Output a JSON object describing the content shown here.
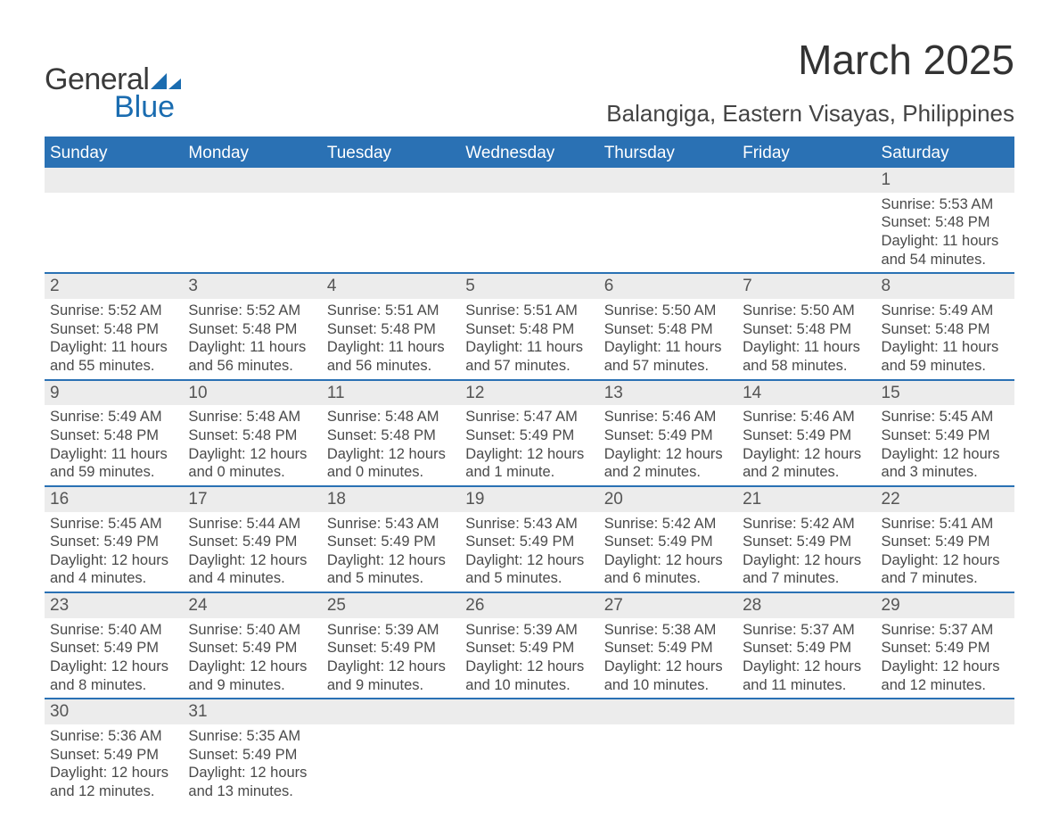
{
  "brand": {
    "word1": "General",
    "word2": "Blue",
    "accent_color": "#1a6cb0"
  },
  "header": {
    "month_title": "March 2025",
    "location": "Balangiga, Eastern Visayas, Philippines"
  },
  "colors": {
    "header_bg": "#2a71b4",
    "header_text": "#ffffff",
    "row_divider": "#2a71b4",
    "daynum_bg": "#ececec",
    "body_text": "#4a4a4a"
  },
  "calendar": {
    "day_headers": [
      "Sunday",
      "Monday",
      "Tuesday",
      "Wednesday",
      "Thursday",
      "Friday",
      "Saturday"
    ],
    "weeks": [
      [
        null,
        null,
        null,
        null,
        null,
        null,
        {
          "n": "1",
          "sunrise": "5:53 AM",
          "sunset": "5:48 PM",
          "daylight": "11 hours and 54 minutes."
        }
      ],
      [
        {
          "n": "2",
          "sunrise": "5:52 AM",
          "sunset": "5:48 PM",
          "daylight": "11 hours and 55 minutes."
        },
        {
          "n": "3",
          "sunrise": "5:52 AM",
          "sunset": "5:48 PM",
          "daylight": "11 hours and 56 minutes."
        },
        {
          "n": "4",
          "sunrise": "5:51 AM",
          "sunset": "5:48 PM",
          "daylight": "11 hours and 56 minutes."
        },
        {
          "n": "5",
          "sunrise": "5:51 AM",
          "sunset": "5:48 PM",
          "daylight": "11 hours and 57 minutes."
        },
        {
          "n": "6",
          "sunrise": "5:50 AM",
          "sunset": "5:48 PM",
          "daylight": "11 hours and 57 minutes."
        },
        {
          "n": "7",
          "sunrise": "5:50 AM",
          "sunset": "5:48 PM",
          "daylight": "11 hours and 58 minutes."
        },
        {
          "n": "8",
          "sunrise": "5:49 AM",
          "sunset": "5:48 PM",
          "daylight": "11 hours and 59 minutes."
        }
      ],
      [
        {
          "n": "9",
          "sunrise": "5:49 AM",
          "sunset": "5:48 PM",
          "daylight": "11 hours and 59 minutes."
        },
        {
          "n": "10",
          "sunrise": "5:48 AM",
          "sunset": "5:48 PM",
          "daylight": "12 hours and 0 minutes."
        },
        {
          "n": "11",
          "sunrise": "5:48 AM",
          "sunset": "5:48 PM",
          "daylight": "12 hours and 0 minutes."
        },
        {
          "n": "12",
          "sunrise": "5:47 AM",
          "sunset": "5:49 PM",
          "daylight": "12 hours and 1 minute."
        },
        {
          "n": "13",
          "sunrise": "5:46 AM",
          "sunset": "5:49 PM",
          "daylight": "12 hours and 2 minutes."
        },
        {
          "n": "14",
          "sunrise": "5:46 AM",
          "sunset": "5:49 PM",
          "daylight": "12 hours and 2 minutes."
        },
        {
          "n": "15",
          "sunrise": "5:45 AM",
          "sunset": "5:49 PM",
          "daylight": "12 hours and 3 minutes."
        }
      ],
      [
        {
          "n": "16",
          "sunrise": "5:45 AM",
          "sunset": "5:49 PM",
          "daylight": "12 hours and 4 minutes."
        },
        {
          "n": "17",
          "sunrise": "5:44 AM",
          "sunset": "5:49 PM",
          "daylight": "12 hours and 4 minutes."
        },
        {
          "n": "18",
          "sunrise": "5:43 AM",
          "sunset": "5:49 PM",
          "daylight": "12 hours and 5 minutes."
        },
        {
          "n": "19",
          "sunrise": "5:43 AM",
          "sunset": "5:49 PM",
          "daylight": "12 hours and 5 minutes."
        },
        {
          "n": "20",
          "sunrise": "5:42 AM",
          "sunset": "5:49 PM",
          "daylight": "12 hours and 6 minutes."
        },
        {
          "n": "21",
          "sunrise": "5:42 AM",
          "sunset": "5:49 PM",
          "daylight": "12 hours and 7 minutes."
        },
        {
          "n": "22",
          "sunrise": "5:41 AM",
          "sunset": "5:49 PM",
          "daylight": "12 hours and 7 minutes."
        }
      ],
      [
        {
          "n": "23",
          "sunrise": "5:40 AM",
          "sunset": "5:49 PM",
          "daylight": "12 hours and 8 minutes."
        },
        {
          "n": "24",
          "sunrise": "5:40 AM",
          "sunset": "5:49 PM",
          "daylight": "12 hours and 9 minutes."
        },
        {
          "n": "25",
          "sunrise": "5:39 AM",
          "sunset": "5:49 PM",
          "daylight": "12 hours and 9 minutes."
        },
        {
          "n": "26",
          "sunrise": "5:39 AM",
          "sunset": "5:49 PM",
          "daylight": "12 hours and 10 minutes."
        },
        {
          "n": "27",
          "sunrise": "5:38 AM",
          "sunset": "5:49 PM",
          "daylight": "12 hours and 10 minutes."
        },
        {
          "n": "28",
          "sunrise": "5:37 AM",
          "sunset": "5:49 PM",
          "daylight": "12 hours and 11 minutes."
        },
        {
          "n": "29",
          "sunrise": "5:37 AM",
          "sunset": "5:49 PM",
          "daylight": "12 hours and 12 minutes."
        }
      ],
      [
        {
          "n": "30",
          "sunrise": "5:36 AM",
          "sunset": "5:49 PM",
          "daylight": "12 hours and 12 minutes."
        },
        {
          "n": "31",
          "sunrise": "5:35 AM",
          "sunset": "5:49 PM",
          "daylight": "12 hours and 13 minutes."
        },
        null,
        null,
        null,
        null,
        null
      ]
    ],
    "labels": {
      "sunrise": "Sunrise: ",
      "sunset": "Sunset: ",
      "daylight": "Daylight: "
    }
  }
}
